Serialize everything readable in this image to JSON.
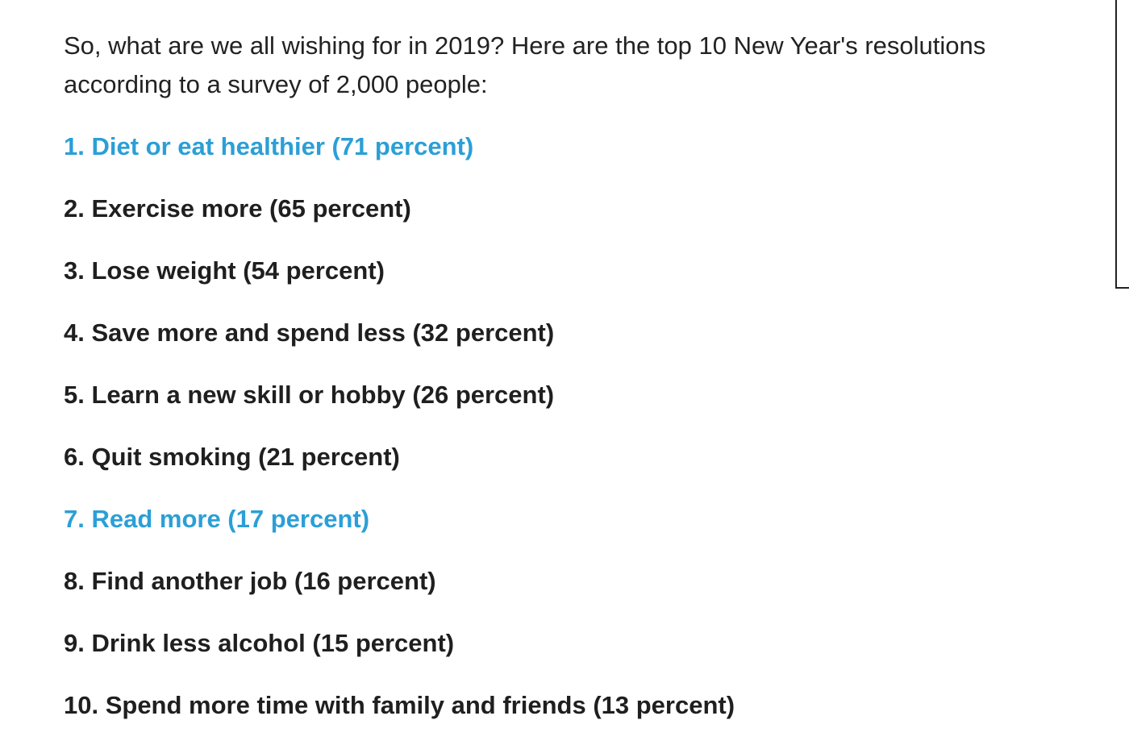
{
  "intro": {
    "text": "So, what are we all wishing for in 2019? Here are the top 10 New Year's resolutions according to a survey of 2,000 people:"
  },
  "resolutions": [
    {
      "text": "1. Diet or eat healthier (71 percent)",
      "is_link": true
    },
    {
      "text": "2. Exercise more (65 percent)",
      "is_link": false
    },
    {
      "text": "3. Lose weight (54 percent)",
      "is_link": false
    },
    {
      "text": "4. Save more and spend less (32 percent)",
      "is_link": false
    },
    {
      "text": "5. Learn a new skill or hobby (26 percent)",
      "is_link": false
    },
    {
      "text": "6. Quit smoking (21 percent)",
      "is_link": false
    },
    {
      "text": "7. Read more (17 percent)",
      "is_link": true
    },
    {
      "text": "8. Find another job (16 percent)",
      "is_link": false
    },
    {
      "text": "9. Drink less alcohol (15 percent)",
      "is_link": false
    },
    {
      "text": "10. Spend more time with family and friends (13 percent)",
      "is_link": false
    }
  ],
  "colors": {
    "text": "#1f1f1f",
    "link": "#2b9fd6",
    "background": "#ffffff"
  }
}
